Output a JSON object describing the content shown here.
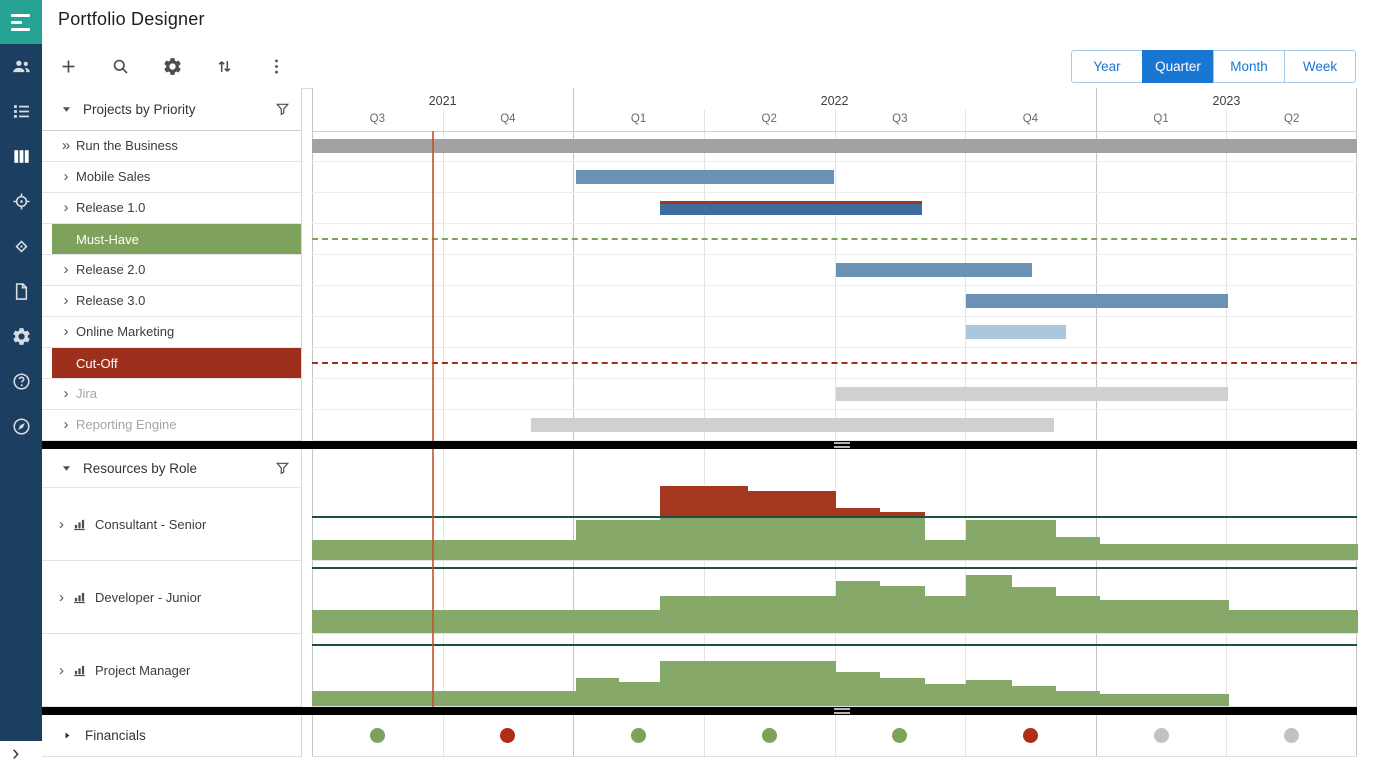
{
  "app": {
    "title": "Portfolio Designer",
    "panel_toggle_glyph": "›"
  },
  "colors": {
    "sidebar_bg": "#1c3e60",
    "logo_bg": "#27a394",
    "accent_blue": "#1976d2",
    "button_border": "#a5c9ea",
    "bar_blue": "#6b92b4",
    "bar_blue_dark": "#3d6d9e",
    "bar_blue_light": "#abc5da",
    "bar_gray": "#a2a2a2",
    "bar_gray_light": "#d0d0d0",
    "green": "#7ea15c",
    "hist_green": "#86a868",
    "hist_red": "#a3381f",
    "capacity_green": "#1e4f41",
    "red": "#a3381f",
    "red_dark": "#9d2f1d",
    "marker_red": "#b02d16",
    "gray_marker": "#c2c2c2",
    "today_red": "#c2512e"
  },
  "sidebar": {
    "icons": [
      "users-icon",
      "task-list-icon",
      "columns-icon",
      "target-icon",
      "milestone-icon",
      "document-icon",
      "settings-icon",
      "help-icon",
      "compass-icon"
    ]
  },
  "toolbar": {
    "icons": [
      "add-icon",
      "search-icon",
      "settings-icon",
      "sort-icon",
      "more-icon"
    ],
    "views": [
      {
        "label": "Year",
        "selected": false
      },
      {
        "label": "Quarter",
        "selected": true
      },
      {
        "label": "Month",
        "selected": false
      },
      {
        "label": "Week",
        "selected": false
      }
    ]
  },
  "timeline": {
    "years": [
      {
        "label": "2021",
        "quarters": [
          "Q3",
          "Q4"
        ]
      },
      {
        "label": "2022",
        "quarters": [
          "Q1",
          "Q2",
          "Q3",
          "Q4"
        ]
      },
      {
        "label": "2023",
        "quarters": [
          "Q1",
          "Q2"
        ]
      }
    ],
    "today_frac": 0.115
  },
  "projects": {
    "header": "Projects by Priority",
    "rows": [
      {
        "label": "Run the Business",
        "chevron": "»",
        "kind": "bar",
        "start": 0,
        "end": 1,
        "color_key": "bar_gray"
      },
      {
        "label": "Mobile Sales",
        "chevron": "›",
        "kind": "bar",
        "start": 0.253,
        "end": 0.5,
        "color_key": "bar_blue"
      },
      {
        "label": "Release 1.0",
        "chevron": "›",
        "kind": "bar",
        "start": 0.333,
        "end": 0.584,
        "color_key": "bar_blue_dark",
        "deadline_overrun": true
      },
      {
        "label": "Must-Have",
        "kind": "group",
        "color_key": "green"
      },
      {
        "label": "Release 2.0",
        "chevron": "›",
        "kind": "bar",
        "start": 0.501,
        "end": 0.689,
        "color_key": "bar_blue"
      },
      {
        "label": "Release 3.0",
        "chevron": "›",
        "kind": "bar",
        "start": 0.626,
        "end": 0.877,
        "color_key": "bar_blue"
      },
      {
        "label": "Online Marketing",
        "chevron": "›",
        "kind": "bar",
        "start": 0.626,
        "end": 0.722,
        "color_key": "bar_blue_light"
      },
      {
        "label": "Cut-Off",
        "kind": "group",
        "color_key": "red_dark"
      },
      {
        "label": "Jira",
        "chevron": "›",
        "kind": "bar",
        "start": 0.501,
        "end": 0.877,
        "color_key": "bar_gray_light",
        "muted": true
      },
      {
        "label": "Reporting Engine",
        "chevron": "›",
        "kind": "bar",
        "start": 0.21,
        "end": 0.71,
        "color_key": "bar_gray_light",
        "muted": true
      }
    ]
  },
  "resources": {
    "header": "Resources by Role",
    "rows": [
      {
        "label": "Consultant - Senior",
        "capacity": 42,
        "segments": [
          [
            0,
            0.253,
            20
          ],
          [
            0.253,
            0.333,
            40
          ],
          [
            0.333,
            0.417,
            74
          ],
          [
            0.417,
            0.501,
            69
          ],
          [
            0.501,
            0.543,
            52
          ],
          [
            0.543,
            0.586,
            48
          ],
          [
            0.586,
            0.626,
            20
          ],
          [
            0.626,
            0.711,
            40
          ],
          [
            0.711,
            0.753,
            23
          ],
          [
            0.753,
            1,
            16
          ]
        ]
      },
      {
        "label": "Developer - Junior",
        "capacity": 64,
        "segments": [
          [
            0,
            0.333,
            23
          ],
          [
            0.333,
            0.501,
            37
          ],
          [
            0.501,
            0.543,
            52
          ],
          [
            0.543,
            0.586,
            47
          ],
          [
            0.586,
            0.626,
            37
          ],
          [
            0.626,
            0.669,
            58
          ],
          [
            0.669,
            0.711,
            46
          ],
          [
            0.711,
            0.753,
            37
          ],
          [
            0.753,
            0.877,
            33
          ],
          [
            0.877,
            1,
            23
          ]
        ]
      },
      {
        "label": "Project Manager",
        "capacity": 60,
        "segments": [
          [
            0,
            0.253,
            15
          ],
          [
            0.253,
            0.293,
            28
          ],
          [
            0.293,
            0.333,
            24
          ],
          [
            0.333,
            0.501,
            45
          ],
          [
            0.501,
            0.543,
            34
          ],
          [
            0.543,
            0.586,
            28
          ],
          [
            0.586,
            0.626,
            22
          ],
          [
            0.626,
            0.669,
            26
          ],
          [
            0.669,
            0.711,
            20
          ],
          [
            0.711,
            0.753,
            15
          ],
          [
            0.753,
            0.877,
            12
          ]
        ]
      }
    ]
  },
  "financials": {
    "label": "Financials",
    "markers": [
      {
        "quarter": "Q3 2021",
        "status": "green"
      },
      {
        "quarter": "Q4 2021",
        "status": "red"
      },
      {
        "quarter": "Q1 2022",
        "status": "green"
      },
      {
        "quarter": "Q2 2022",
        "status": "green"
      },
      {
        "quarter": "Q3 2022",
        "status": "green"
      },
      {
        "quarter": "Q4 2022",
        "status": "red"
      },
      {
        "quarter": "Q1 2023",
        "status": "gray"
      },
      {
        "quarter": "Q2 2023",
        "status": "gray"
      }
    ]
  }
}
